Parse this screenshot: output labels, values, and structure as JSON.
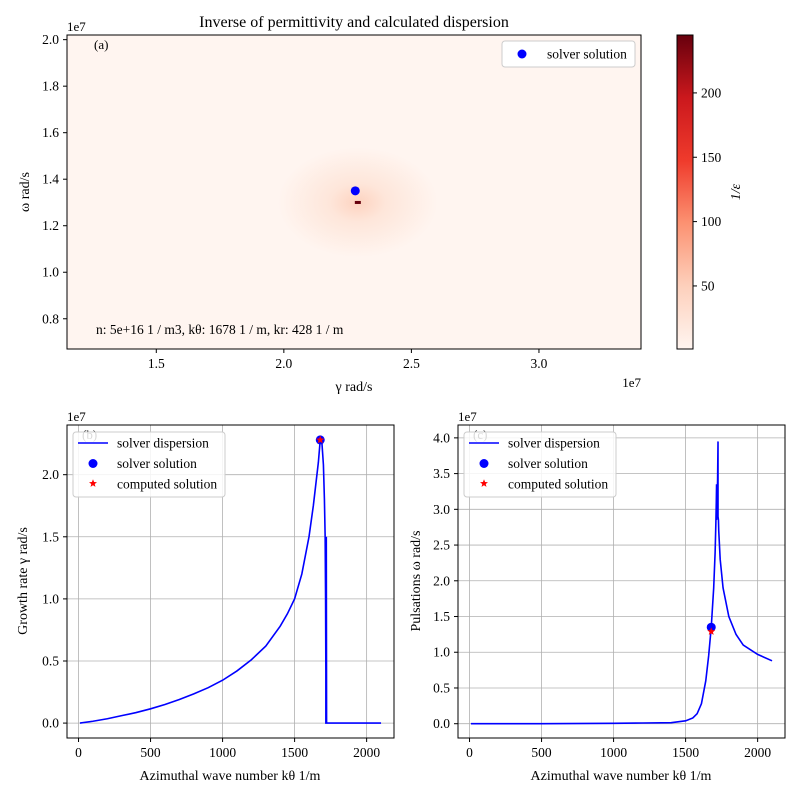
{
  "chart_data": [
    {
      "panel": "(a)",
      "type": "heatmap",
      "title": "Inverse of permittivity and calculated dispersion",
      "xlabel": "γ rad/s",
      "ylabel": "ω rad/s",
      "x_multiplier": "1e7",
      "y_multiplier": "1e7",
      "xlim": [
        1.15,
        3.4
      ],
      "ylim": [
        0.67,
        2.02
      ],
      "xticks": [
        "1.5",
        "2.0",
        "2.5",
        "3.0"
      ],
      "yticks": [
        "0.8",
        "1.0",
        "1.2",
        "1.4",
        "1.6",
        "1.8",
        "2.0"
      ],
      "colorbar_label": "1/ε",
      "colorbar_range": [
        1,
        245
      ],
      "colorbar_ticks": [
        "50",
        "100",
        "150",
        "200"
      ],
      "colormap": [
        "#fff5f0",
        "#fdd0bc",
        "#fc9272",
        "#ef3b2c",
        "#cb181d",
        "#67000d"
      ],
      "peak": {
        "x": 2.29,
        "y": 1.3
      },
      "annotation": "n: 5e+16 1 / m3, kθ: 1678 1 / m, kr: 428 1 / m",
      "series": [
        {
          "name": "solver solution",
          "marker": "circle",
          "color": "#0000ff",
          "points": [
            [
              2.28,
              1.35
            ]
          ]
        }
      ],
      "legend": "top-right",
      "grid": false
    },
    {
      "panel": "(b)",
      "type": "line",
      "title": "",
      "xlabel": "Azimuthal wave number kθ 1/m",
      "ylabel": "Growth rate  γ rad/s",
      "y_multiplier": "1e7",
      "xlim": [
        -80,
        2190
      ],
      "ylim": [
        -0.12,
        2.4
      ],
      "xticks": [
        "0",
        "500",
        "1000",
        "1500",
        "2000"
      ],
      "yticks": [
        "0.0",
        "0.5",
        "1.0",
        "1.5",
        "2.0"
      ],
      "grid": true,
      "legend": "top-left",
      "series": [
        {
          "name": "solver dispersion",
          "color": "#0000ff",
          "x": [
            10,
            100,
            200,
            300,
            400,
            500,
            600,
            700,
            800,
            900,
            1000,
            1100,
            1200,
            1300,
            1400,
            1450,
            1500,
            1550,
            1600,
            1630,
            1650,
            1665,
            1678,
            1690,
            1700,
            1707,
            1712,
            1715,
            1717,
            1717,
            1718,
            1720,
            1720,
            1722,
            1800,
            1900,
            2000,
            2100
          ],
          "y": [
            0.0,
            0.015,
            0.035,
            0.06,
            0.085,
            0.115,
            0.15,
            0.19,
            0.235,
            0.285,
            0.345,
            0.42,
            0.51,
            0.62,
            0.78,
            0.88,
            1.0,
            1.2,
            1.5,
            1.75,
            1.95,
            2.1,
            2.28,
            2.25,
            2.08,
            1.8,
            1.5,
            1.0,
            0.4,
            0.0,
            0.0,
            0.0,
            1.5,
            0.0,
            0.0,
            0.0,
            0.0,
            0.0
          ]
        },
        {
          "name": "solver solution",
          "marker": "circle",
          "color": "#0000ff",
          "points": [
            [
              1678,
              2.28
            ]
          ]
        },
        {
          "name": "computed solution",
          "marker": "star",
          "color": "#ff0000",
          "points": [
            [
              1678,
              2.28
            ]
          ]
        }
      ]
    },
    {
      "panel": "(c)",
      "type": "line",
      "title": "",
      "xlabel": "Azimuthal wave number kθ 1/m",
      "ylabel": "Pulsations  ω rad/s",
      "y_multiplier": "1e7",
      "xlim": [
        -80,
        2190
      ],
      "ylim": [
        -0.2,
        4.18
      ],
      "xticks": [
        "0",
        "500",
        "1000",
        "1500",
        "2000"
      ],
      "yticks": [
        "0.0",
        "0.5",
        "1.0",
        "1.5",
        "2.0",
        "2.5",
        "3.0",
        "3.5",
        "4.0"
      ],
      "grid": true,
      "legend": "top-left",
      "series": [
        {
          "name": "solver dispersion",
          "color": "#0000ff",
          "x": [
            10,
            500,
            1000,
            1200,
            1400,
            1500,
            1550,
            1580,
            1610,
            1640,
            1660,
            1678,
            1695,
            1705,
            1710,
            1713,
            1715,
            1715,
            1722,
            1725,
            1725,
            1728,
            1730,
            1740,
            1760,
            1800,
            1850,
            1900,
            2000,
            2100
          ],
          "y": [
            0.0,
            0.0,
            0.005,
            0.01,
            0.015,
            0.04,
            0.08,
            0.14,
            0.28,
            0.6,
            0.95,
            1.35,
            1.9,
            2.4,
            2.8,
            3.1,
            3.35,
            2.85,
            3.4,
            3.95,
            2.9,
            2.85,
            2.7,
            2.3,
            1.9,
            1.5,
            1.25,
            1.1,
            0.97,
            0.88
          ]
        },
        {
          "name": "solver solution",
          "marker": "circle",
          "color": "#0000ff",
          "points": [
            [
              1678,
              1.35
            ]
          ]
        },
        {
          "name": "computed solution",
          "marker": "star",
          "color": "#ff0000",
          "points": [
            [
              1678,
              1.29
            ]
          ]
        }
      ]
    }
  ]
}
